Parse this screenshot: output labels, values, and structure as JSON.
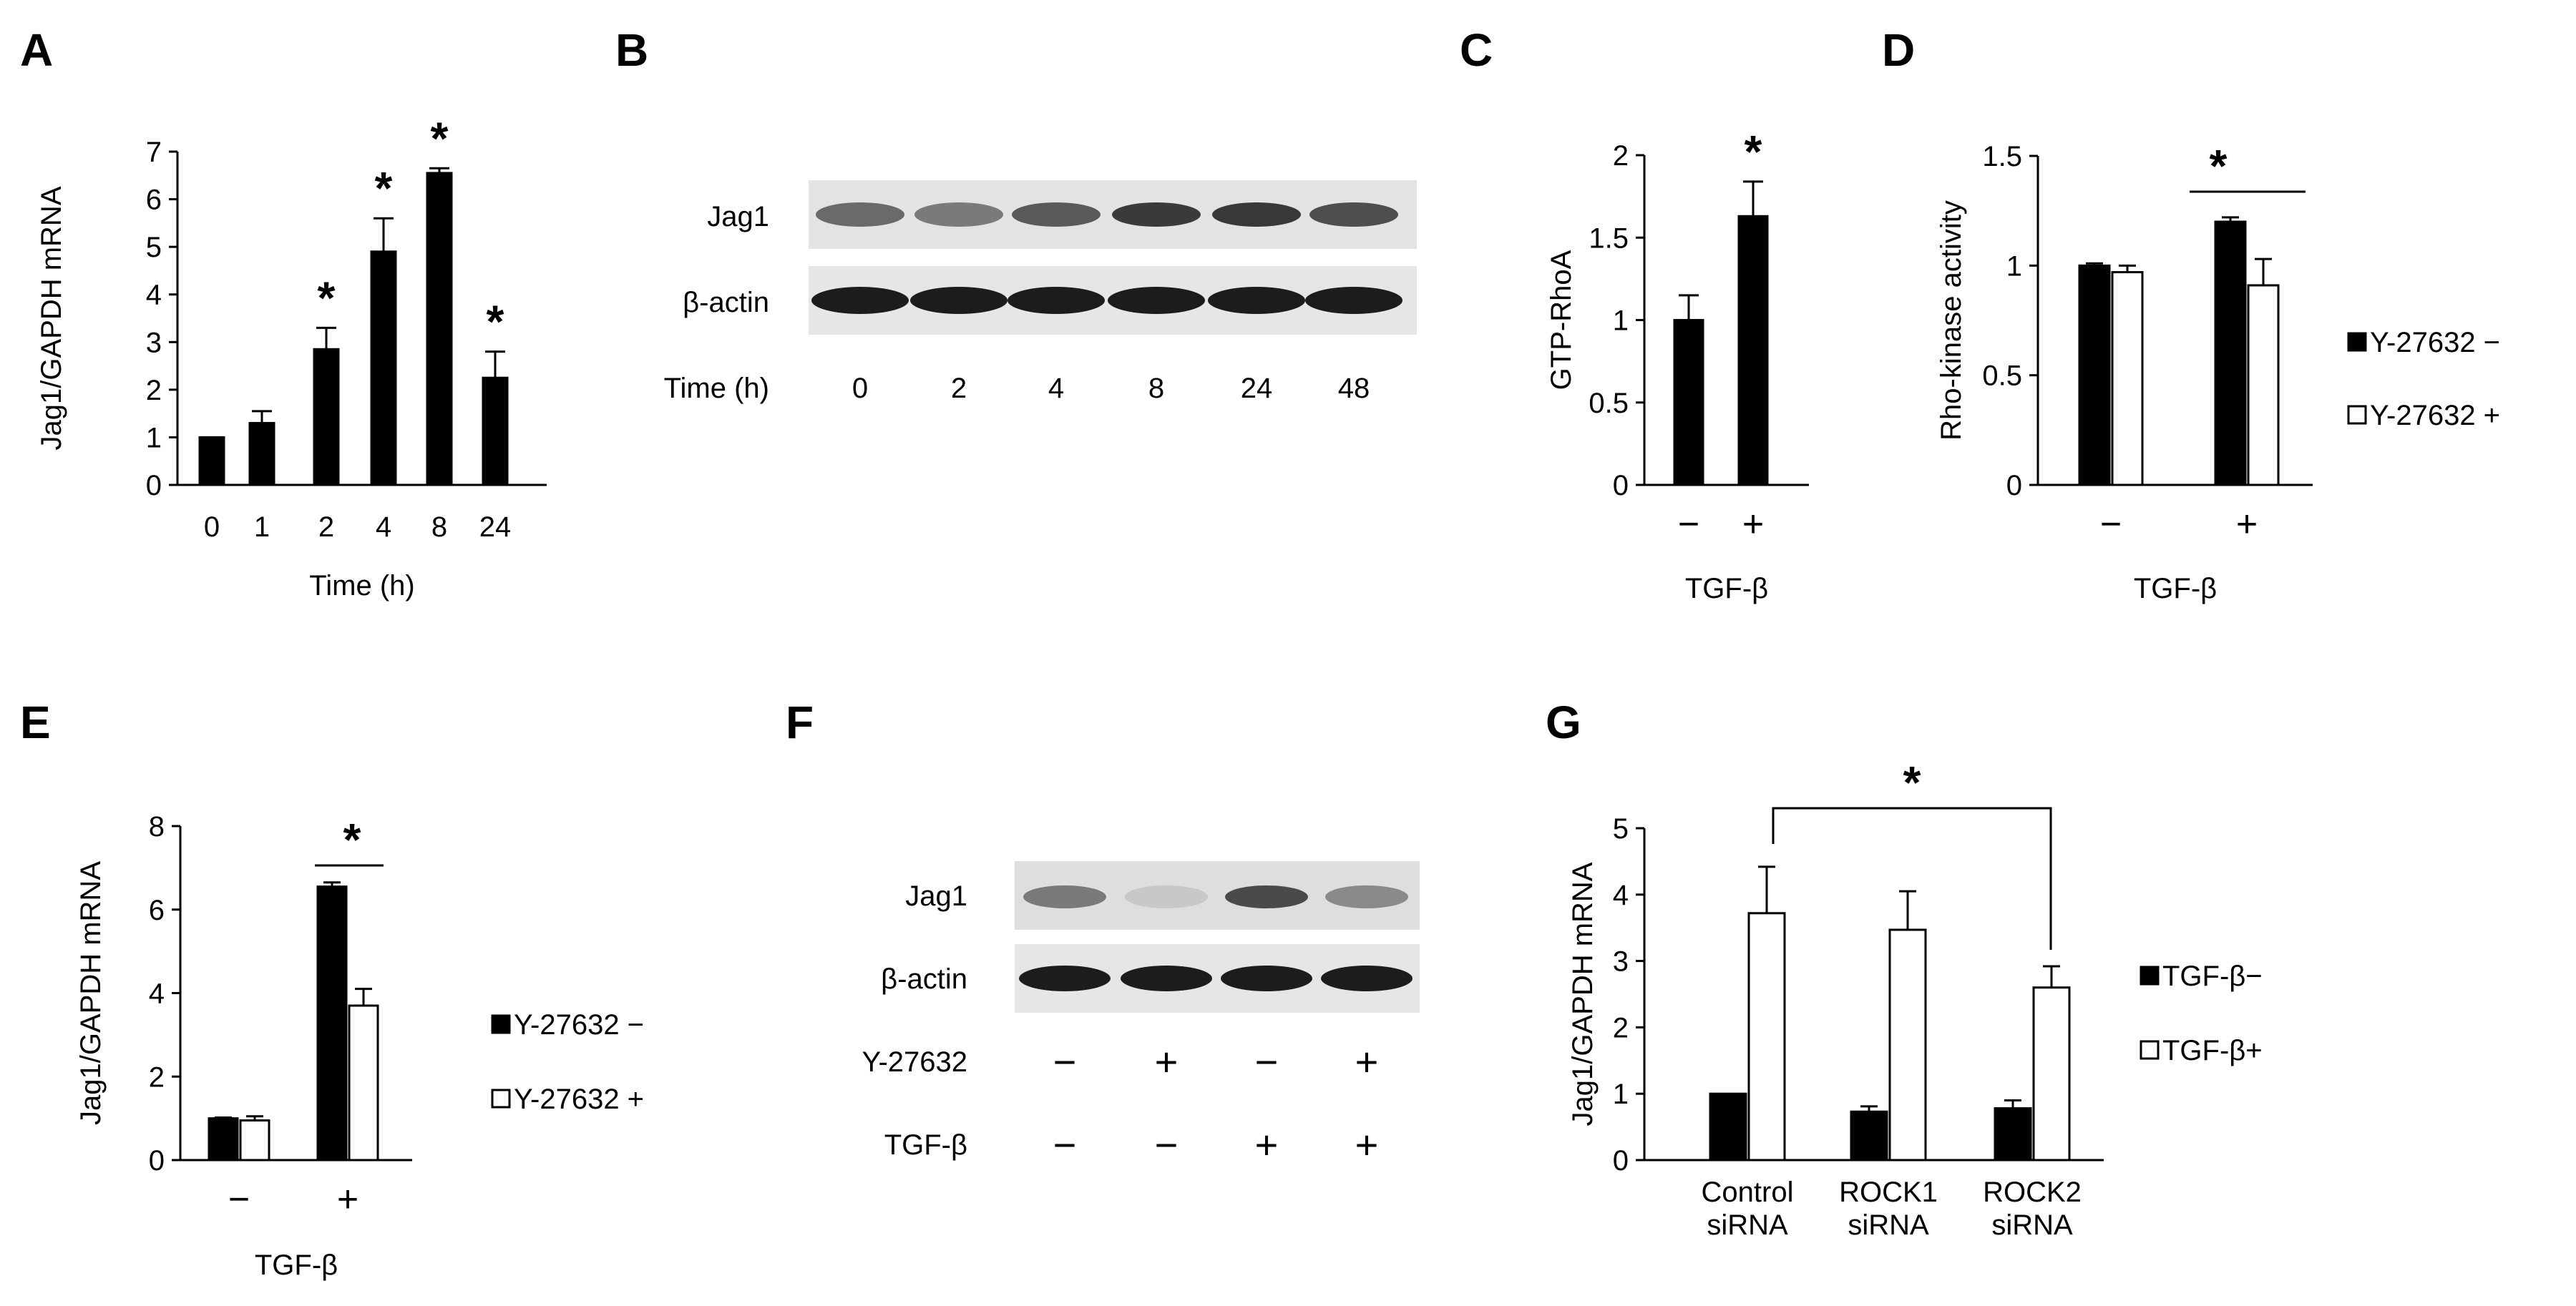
{
  "panels": {
    "A": {
      "label": "A"
    },
    "B": {
      "label": "B",
      "rows": [
        "Jag1",
        "β-actin"
      ],
      "time_label": "Time (h)",
      "lanes": [
        "0",
        "2",
        "4",
        "8",
        "24",
        "48"
      ]
    },
    "C": {
      "label": "C"
    },
    "D": {
      "label": "D"
    },
    "E": {
      "label": "E"
    },
    "F": {
      "label": "F",
      "rows": [
        "Jag1",
        "β-actin"
      ],
      "treat_rows": [
        {
          "name": "Y-27632",
          "signs": [
            "−",
            "+",
            "−",
            "+"
          ]
        },
        {
          "name": "TGF-β",
          "signs": [
            "−",
            "−",
            "+",
            "+"
          ]
        }
      ]
    },
    "G": {
      "label": "G"
    }
  },
  "chart_data": [
    {
      "id": "A",
      "type": "bar",
      "categories": [
        "0",
        "1",
        "2",
        "4",
        "8",
        "24"
      ],
      "values": [
        1.0,
        1.3,
        2.85,
        4.9,
        6.55,
        2.25
      ],
      "errors": [
        0,
        0.25,
        0.45,
        0.7,
        0.1,
        0.55
      ],
      "significant": [
        false,
        false,
        true,
        true,
        true,
        true
      ],
      "xlabel": "Time (h)",
      "ylabel": "Jag1/GAPDH mRNA",
      "ylim": [
        0,
        7
      ],
      "yticks": [
        "0",
        "1",
        "2",
        "3",
        "4",
        "5",
        "6",
        "7"
      ],
      "colors": {
        "bar": "#000000"
      }
    },
    {
      "id": "C",
      "type": "bar",
      "categories": [
        "−",
        "+"
      ],
      "values": [
        1.0,
        1.63
      ],
      "errors": [
        0.15,
        0.21
      ],
      "significant": [
        false,
        true
      ],
      "xlabel": "TGF-β",
      "ylabel": "GTP-RhoA",
      "ylim": [
        0,
        2
      ],
      "yticks": [
        "0",
        "0.5",
        "1",
        "1.5",
        "2"
      ]
    },
    {
      "id": "D",
      "type": "bar",
      "categories": [
        "−",
        "+"
      ],
      "series": [
        {
          "name": "Y-27632 −",
          "values": [
            1.0,
            1.2
          ],
          "errors": [
            0.01,
            0.02
          ],
          "color": "#000000"
        },
        {
          "name": "Y-27632 +",
          "values": [
            0.97,
            0.91
          ],
          "errors": [
            0.03,
            0.12
          ],
          "color": "#ffffff"
        }
      ],
      "significance": "*",
      "xlabel": "TGF-β",
      "ylabel": "Rho-kinase activity",
      "ylim": [
        0,
        1.5
      ],
      "yticks": [
        "0",
        "0.5",
        "1",
        "1.5"
      ]
    },
    {
      "id": "E",
      "type": "bar",
      "categories": [
        "−",
        "+"
      ],
      "series": [
        {
          "name": "Y-27632 −",
          "values": [
            1.0,
            6.55
          ],
          "errors": [
            0.02,
            0.1
          ],
          "color": "#000000"
        },
        {
          "name": "Y-27632 +",
          "values": [
            0.95,
            3.7
          ],
          "errors": [
            0.1,
            0.4
          ],
          "color": "#ffffff"
        }
      ],
      "significance": "*",
      "xlabel": "TGF-β",
      "ylabel": "Jag1/GAPDH mRNA",
      "ylim": [
        0,
        8
      ],
      "yticks": [
        "0",
        "2",
        "4",
        "6",
        "8"
      ]
    },
    {
      "id": "G",
      "type": "bar",
      "categories": [
        [
          "Control",
          "siRNA"
        ],
        [
          "ROCK1",
          "siRNA"
        ],
        [
          "ROCK2",
          "siRNA"
        ]
      ],
      "series": [
        {
          "name": "TGF-β−",
          "values": [
            1.0,
            0.73,
            0.78
          ],
          "errors": [
            0,
            0.08,
            0.12
          ],
          "color": "#000000"
        },
        {
          "name": "TGF-β+",
          "values": [
            3.72,
            3.47,
            2.6
          ],
          "errors": [
            0.7,
            0.58,
            0.32
          ],
          "color": "#ffffff"
        }
      ],
      "significance": "*",
      "xlabel": "",
      "ylabel": "Jag1/GAPDH mRNA",
      "ylim": [
        0,
        5
      ],
      "yticks": [
        "0",
        "1",
        "2",
        "3",
        "4",
        "5"
      ]
    }
  ]
}
